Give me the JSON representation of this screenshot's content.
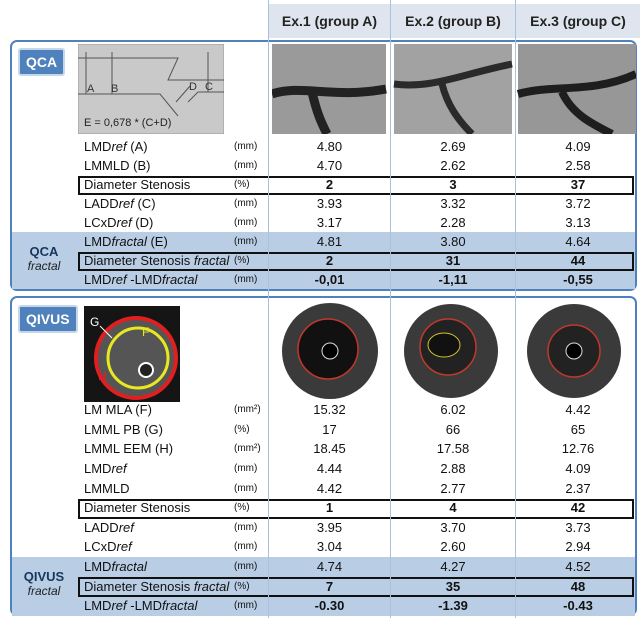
{
  "columns": [
    "Ex.1 (group A)",
    "Ex.2 (group B)",
    "Ex.3 (group C)"
  ],
  "panels": [
    {
      "label": "QCA",
      "diagram": {
        "labels": [
          "A",
          "B",
          "D",
          "C"
        ],
        "formula": "E =  0,678 * (C+D)"
      },
      "rows": [
        {
          "name": [
            "LMD",
            "ref",
            " (A)"
          ],
          "unit": "(mm)",
          "values": [
            "4.80",
            "2.69",
            "4.09"
          ]
        },
        {
          "name": [
            "LMMLD (B)"
          ],
          "unit": "(mm)",
          "values": [
            "4.70",
            "2.62",
            "2.58"
          ]
        },
        {
          "name": [
            "Diameter Stenosis"
          ],
          "unit": "(%)",
          "values": [
            "2",
            "3",
            "37"
          ],
          "bold": true,
          "boxed": true
        },
        {
          "name": [
            "LADD",
            "ref",
            " (C)"
          ],
          "unit": "(mm)",
          "values": [
            "3.93",
            "3.32",
            "3.72"
          ]
        },
        {
          "name": [
            "LCxD",
            "ref",
            " (D)"
          ],
          "unit": "(mm)",
          "values": [
            "3.17",
            "2.28",
            "3.13"
          ]
        }
      ],
      "fractal_label": {
        "name": "QCA",
        "word": "fractal"
      },
      "fractal_rows": [
        {
          "name": [
            "LMD",
            "fractal",
            " (E)"
          ],
          "unit": "(mm)",
          "values": [
            "4.81",
            "3.80",
            "4.64"
          ]
        },
        {
          "name": [
            "Diameter Stenosis ",
            "fractal"
          ],
          "unit": "(%)",
          "values": [
            "2",
            "31",
            "44"
          ],
          "bold": true,
          "boxed": true
        },
        {
          "name": [
            "LMD",
            "ref",
            " -LMD",
            "fractal"
          ],
          "unit": "(mm)",
          "values": [
            "-0,01",
            "-1,11",
            "-0,55"
          ],
          "bold": true
        }
      ]
    },
    {
      "label": "QIVUS",
      "diagram": {
        "labels": [
          "G",
          "F",
          "H"
        ]
      },
      "rows": [
        {
          "name": [
            "LM MLA (F)"
          ],
          "unit": "(mm²)",
          "values": [
            "15.32",
            "6.02",
            "4.42"
          ]
        },
        {
          "name": [
            "LMML PB (G)"
          ],
          "unit": "(%)",
          "values": [
            "17",
            "66",
            "65"
          ]
        },
        {
          "name": [
            "LMML EEM (H)"
          ],
          "unit": "(mm²)",
          "values": [
            "18.45",
            "17.58",
            "12.76"
          ]
        },
        {
          "name": [
            "LMD",
            "ref"
          ],
          "unit": "(mm)",
          "values": [
            "4.44",
            "2.88",
            "4.09"
          ]
        },
        {
          "name": [
            "LMMLD"
          ],
          "unit": "(mm)",
          "values": [
            "4.42",
            "2.77",
            "2.37"
          ]
        },
        {
          "name": [
            "Diameter Stenosis"
          ],
          "unit": "(%)",
          "values": [
            "1",
            "4",
            "42"
          ],
          "bold": true,
          "boxed": true
        },
        {
          "name": [
            "LADD",
            "ref"
          ],
          "unit": "(mm)",
          "values": [
            "3.95",
            "3.70",
            "3.73"
          ]
        },
        {
          "name": [
            "LCxD",
            "ref"
          ],
          "unit": "(mm)",
          "values": [
            "3.04",
            "2.60",
            "2.94"
          ]
        }
      ],
      "fractal_label": {
        "name": "QIVUS",
        "word": "fractal"
      },
      "fractal_rows": [
        {
          "name": [
            "LMD",
            "fractal"
          ],
          "unit": "(mm)",
          "values": [
            "4.74",
            "4.27",
            "4.52"
          ]
        },
        {
          "name": [
            "Diameter Stenosis ",
            "fractal"
          ],
          "unit": "(%)",
          "values": [
            "7",
            "35",
            "48"
          ],
          "bold": true,
          "boxed": true
        },
        {
          "name": [
            "LMD",
            "ref",
            " -LMD",
            "fractal"
          ],
          "unit": "(mm)",
          "values": [
            "-0.30",
            "-1.39",
            "-0.43"
          ],
          "bold": true
        }
      ]
    }
  ]
}
